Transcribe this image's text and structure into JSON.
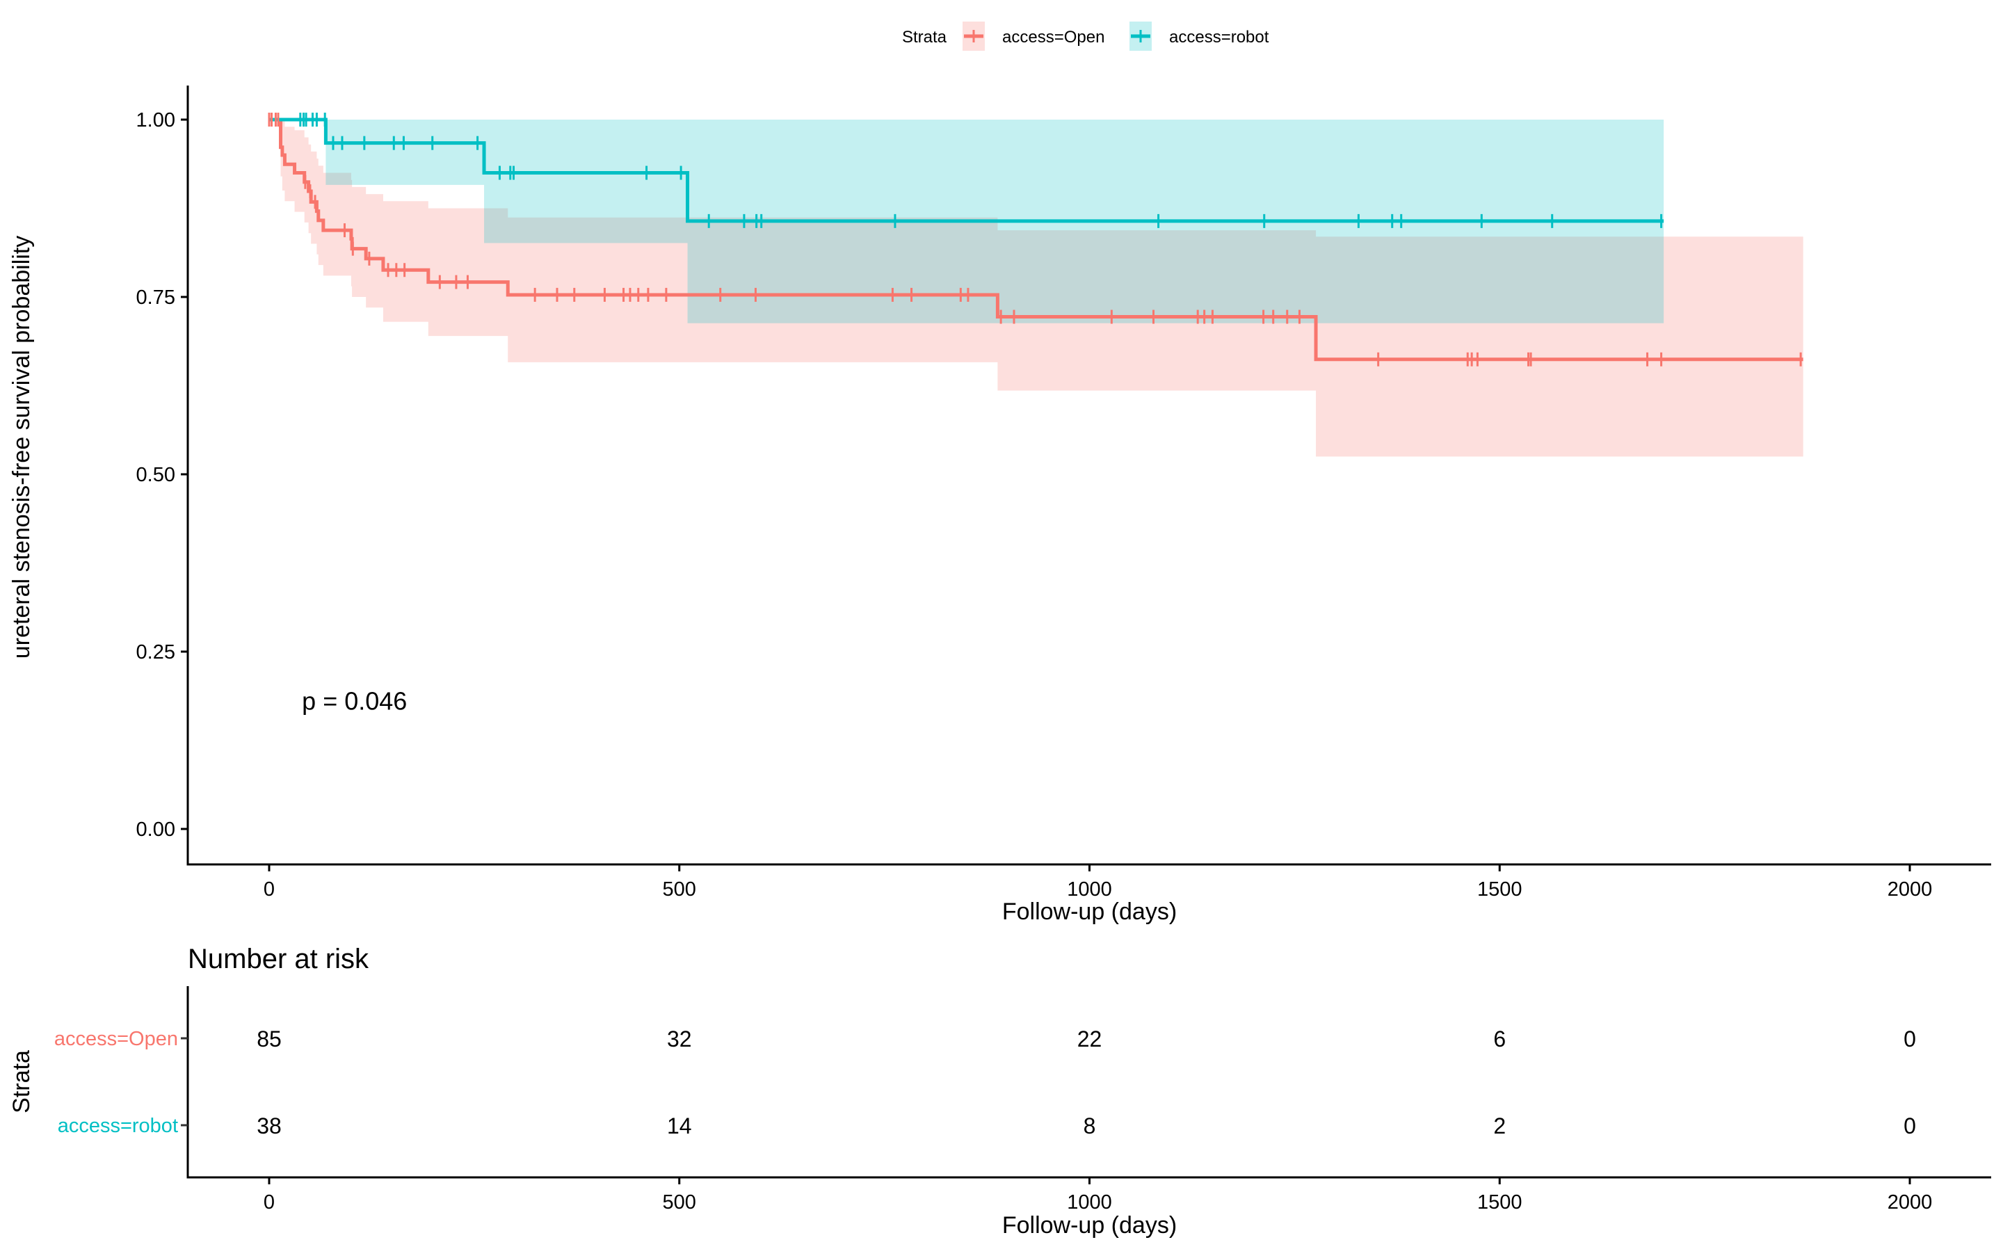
{
  "chart_data": {
    "type": "line",
    "subtype": "kaplan-meier step",
    "title": "",
    "xlabel": "Follow-up (days)",
    "ylabel": "ureteral stenosis-free survival probability",
    "xlim": [
      -100,
      2100
    ],
    "ylim": [
      -0.05,
      1.05
    ],
    "x_ticks": [
      0,
      500,
      1000,
      1500,
      2000
    ],
    "x_tick_labels": [
      "0",
      "500",
      "1000",
      "1500",
      "2000"
    ],
    "y_ticks": [
      0,
      0.25,
      0.5,
      0.75,
      1.0
    ],
    "y_tick_labels": [
      "0.00",
      "0.25",
      "0.50",
      "0.75",
      "1.00"
    ],
    "grid": false,
    "legend": {
      "title": "Strata",
      "placement": "top",
      "entries": [
        "access=Open",
        "access=robot"
      ]
    },
    "annotation": "p = 0.046",
    "series": [
      {
        "name": "access=Open",
        "color": "#F8766D",
        "fill_color": "#F8766D",
        "end_time": 1870,
        "steps": [
          {
            "t": 0,
            "s": 1.0,
            "lower": 1.0,
            "upper": 1.0
          },
          {
            "t": 14,
            "s": 0.961,
            "lower": 0.92,
            "upper": 1.0
          },
          {
            "t": 16,
            "s": 0.95,
            "lower": 0.9,
            "upper": 1.0
          },
          {
            "t": 19,
            "s": 0.937,
            "lower": 0.885,
            "upper": 0.99
          },
          {
            "t": 31,
            "s": 0.925,
            "lower": 0.87,
            "upper": 0.985
          },
          {
            "t": 43,
            "s": 0.912,
            "lower": 0.855,
            "upper": 0.975
          },
          {
            "t": 48,
            "s": 0.899,
            "lower": 0.84,
            "upper": 0.965
          },
          {
            "t": 51,
            "s": 0.884,
            "lower": 0.825,
            "upper": 0.955
          },
          {
            "t": 58,
            "s": 0.871,
            "lower": 0.81,
            "upper": 0.945
          },
          {
            "t": 60,
            "s": 0.858,
            "lower": 0.795,
            "upper": 0.935
          },
          {
            "t": 66,
            "s": 0.844,
            "lower": 0.78,
            "upper": 0.925
          },
          {
            "t": 100,
            "s": 0.832,
            "lower": 0.765,
            "upper": 0.915
          },
          {
            "t": 101,
            "s": 0.818,
            "lower": 0.75,
            "upper": 0.905
          },
          {
            "t": 118,
            "s": 0.804,
            "lower": 0.735,
            "upper": 0.895
          },
          {
            "t": 139,
            "s": 0.788,
            "lower": 0.715,
            "upper": 0.885
          },
          {
            "t": 194,
            "s": 0.771,
            "lower": 0.695,
            "upper": 0.875
          },
          {
            "t": 291,
            "s": 0.753,
            "lower": 0.658,
            "upper": 0.862
          },
          {
            "t": 888,
            "s": 0.722,
            "lower": 0.618,
            "upper": 0.844
          },
          {
            "t": 1276,
            "s": 0.662,
            "lower": 0.525,
            "upper": 0.835
          }
        ],
        "censored_times": [
          0,
          3,
          8,
          11,
          44,
          50,
          56,
          92,
          102,
          122,
          145,
          155,
          165,
          208,
          228,
          242,
          324,
          351,
          372,
          409,
          432,
          440,
          450,
          462,
          484,
          550,
          593,
          760,
          783,
          843,
          852,
          892,
          908,
          1027,
          1078,
          1132,
          1140,
          1150,
          1212,
          1224,
          1241,
          1256,
          1352,
          1461,
          1466,
          1473,
          1535,
          1538,
          1680,
          1697,
          1867
        ]
      },
      {
        "name": "access=robot",
        "color": "#00BFC4",
        "fill_color": "#00BFC4",
        "end_time": 1700,
        "steps": [
          {
            "t": 0,
            "s": 1.0,
            "lower": 1.0,
            "upper": 1.0
          },
          {
            "t": 69,
            "s": 0.967,
            "lower": 0.908,
            "upper": 1.0
          },
          {
            "t": 262,
            "s": 0.925,
            "lower": 0.826,
            "upper": 1.0
          },
          {
            "t": 510,
            "s": 0.857,
            "lower": 0.713,
            "upper": 1.0
          }
        ],
        "censored_times": [
          38,
          42,
          45,
          53,
          58,
          68,
          78,
          89,
          116,
          152,
          164,
          199,
          254,
          281,
          294,
          298,
          460,
          502,
          536,
          579,
          594,
          600,
          763,
          1084,
          1213,
          1328,
          1369,
          1380,
          1478,
          1564,
          1697
        ]
      }
    ],
    "risk_table": {
      "title": "Number at risk",
      "ylabel": "Strata",
      "xlabel": "Follow-up (days)",
      "times": [
        0,
        500,
        1000,
        1500,
        2000
      ],
      "rows": [
        {
          "name": "access=Open",
          "color": "#F8766D",
          "counts": [
            85,
            32,
            22,
            6,
            0
          ]
        },
        {
          "name": "access=robot",
          "color": "#00BFC4",
          "counts": [
            38,
            14,
            8,
            2,
            0
          ]
        }
      ]
    }
  }
}
